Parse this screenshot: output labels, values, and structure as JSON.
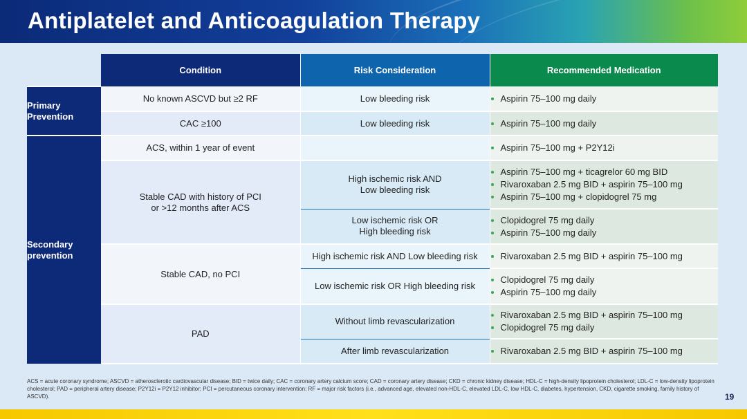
{
  "header": {
    "title": "Antiplatelet and Anticoagulation Therapy"
  },
  "table": {
    "columns": [
      "Condition",
      "Risk Consideration",
      "Recommended Medication"
    ],
    "groups": {
      "primary": "Primary Prevention",
      "secondary": "Secondary prevention"
    },
    "rows": [
      {
        "condition": "No known ASCVD but ≥2 RF",
        "risk": "Low bleeding risk",
        "meds": [
          "Aspirin 75–100 mg daily"
        ]
      },
      {
        "condition": "CAC ≥100",
        "risk": "Low bleeding risk",
        "meds": [
          "Aspirin 75–100 mg daily"
        ]
      },
      {
        "condition": "ACS, within 1 year of event",
        "risk": "",
        "meds": [
          "Aspirin 75–100 mg + P2Y12i"
        ]
      },
      {
        "condition": "Stable CAD with history of PCI or >12 months after ACS",
        "risk": "High ischemic risk AND Low bleeding risk",
        "meds": [
          "Aspirin 75–100 mg + ticagrelor 60 mg BID",
          "Rivaroxaban 2.5 mg BID + aspirin 75–100 mg",
          "Aspirin 75–100 mg + clopidogrel 75 mg"
        ]
      },
      {
        "condition": "",
        "risk": "Low ischemic risk OR High bleeding risk",
        "meds": [
          "Clopidogrel 75 mg daily",
          "Aspirin 75–100 mg daily"
        ]
      },
      {
        "condition": "Stable CAD, no PCI",
        "risk": "High ischemic risk AND Low bleeding risk",
        "meds": [
          "Rivaroxaban 2.5 mg BID + aspirin 75–100 mg"
        ]
      },
      {
        "condition": "",
        "risk": "Low ischemic risk OR High bleeding risk",
        "meds": [
          "Clopidogrel 75 mg daily",
          "Aspirin 75–100 mg daily"
        ]
      },
      {
        "condition": "PAD",
        "risk": "Without limb revascularization",
        "meds": [
          "Rivaroxaban 2.5 mg BID + aspirin 75–100 mg",
          "Clopidogrel 75 mg daily"
        ]
      },
      {
        "condition": "",
        "risk": "After limb revascularization",
        "meds": [
          "Rivaroxaban 2.5 mg BID + aspirin 75–100 mg"
        ]
      }
    ]
  },
  "footnote": "ACS = acute coronary syndrome; ASCVD = atherosclerotic cardiovascular disease; BID = twice daily; CAC = coronary artery calcium score; CAD = coronary artery disease; CKD = chronic kidney disease; HDL-C = high-density lipoprotein cholesterol; LDL-C = low-density lipoprotein cholesterol; PAD = peripheral artery disease; P2Y12i = P2Y12 inhibitor; PCI = percutaneous coronary intervention; RF = major risk factors (i.e., advanced age, elevated non-HDL-C, elevated LDL-C, low HDL-C, diabetes, hypertension, CKD, cigarette smoking, family history of ASCVD).",
  "page_number": "19"
}
